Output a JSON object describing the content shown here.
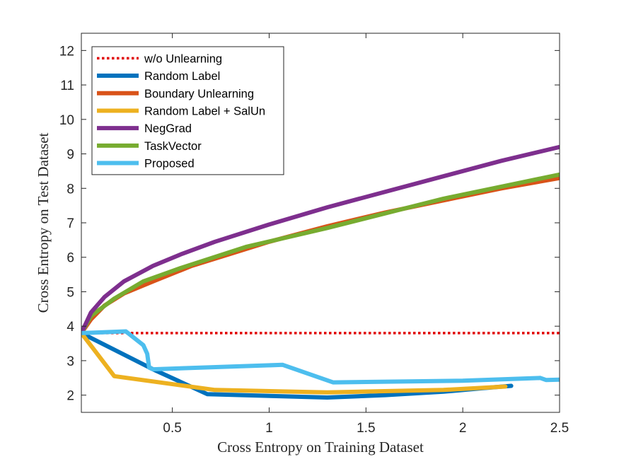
{
  "chart_data": {
    "type": "line",
    "title": "",
    "xlabel": "Cross Entropy on Training Dataset",
    "ylabel": "Cross Entropy on Test Dataset",
    "xlim": [
      0.03,
      2.5
    ],
    "ylim": [
      1.5,
      12.5
    ],
    "xticks": [
      0.5,
      1,
      1.5,
      2,
      2.5
    ],
    "xtick_labels": [
      "0.5",
      "1",
      "1.5",
      "2",
      "2.5"
    ],
    "yticks": [
      2,
      3,
      4,
      5,
      6,
      7,
      8,
      9,
      10,
      11,
      12
    ],
    "ytick_labels": [
      "2",
      "3",
      "4",
      "5",
      "6",
      "7",
      "8",
      "9",
      "10",
      "11",
      "12"
    ],
    "grid": false,
    "legend_position": "top-left",
    "series": [
      {
        "name": "w/o Unlearning",
        "color": "#e00000",
        "style": "dotted",
        "x": [
          0.03,
          2.5
        ],
        "y": [
          3.8,
          3.8
        ]
      },
      {
        "name": "Random Label",
        "color": "#0072bd",
        "style": "solid",
        "x": [
          0.03,
          0.4,
          0.68,
          1.3,
          1.6,
          1.9,
          2.1,
          2.25
        ],
        "y": [
          3.8,
          2.75,
          2.03,
          1.93,
          2.0,
          2.1,
          2.2,
          2.27
        ]
      },
      {
        "name": "Boundary Unlearning",
        "color": "#d95319",
        "style": "solid",
        "x": [
          0.03,
          0.08,
          0.15,
          0.25,
          0.4,
          0.6,
          0.8,
          1.0,
          1.3,
          1.6,
          1.9,
          2.2,
          2.5
        ],
        "y": [
          3.8,
          4.2,
          4.6,
          4.95,
          5.3,
          5.75,
          6.1,
          6.45,
          6.9,
          7.3,
          7.65,
          8.0,
          8.3
        ]
      },
      {
        "name": "Random Label + SalUn",
        "color": "#edb120",
        "style": "solid",
        "x": [
          0.03,
          0.2,
          0.72,
          1.3,
          1.9,
          2.22
        ],
        "y": [
          3.8,
          2.55,
          2.15,
          2.08,
          2.15,
          2.25
        ]
      },
      {
        "name": "NegGrad",
        "color": "#7e2f8e",
        "style": "solid",
        "x": [
          0.03,
          0.08,
          0.15,
          0.25,
          0.4,
          0.55,
          0.72,
          1.0,
          1.3,
          1.6,
          1.9,
          2.2,
          2.5
        ],
        "y": [
          3.8,
          4.4,
          4.85,
          5.3,
          5.75,
          6.1,
          6.45,
          6.95,
          7.45,
          7.9,
          8.35,
          8.8,
          9.2
        ]
      },
      {
        "name": "TaskVector",
        "color": "#77ac30",
        "style": "solid",
        "x": [
          0.03,
          0.08,
          0.2,
          0.35,
          0.55,
          0.88,
          1.3,
          1.9,
          2.5
        ],
        "y": [
          3.8,
          4.3,
          4.8,
          5.3,
          5.7,
          6.3,
          6.85,
          7.7,
          8.4
        ]
      },
      {
        "name": "Proposed",
        "color": "#4dbeee",
        "style": "solid",
        "x": [
          0.03,
          0.26,
          0.35,
          0.37,
          0.38,
          0.4,
          1.07,
          1.33,
          2.0,
          2.4,
          2.43,
          2.5
        ],
        "y": [
          3.8,
          3.85,
          3.45,
          3.2,
          2.8,
          2.75,
          2.88,
          2.37,
          2.42,
          2.5,
          2.44,
          2.45
        ]
      }
    ]
  }
}
